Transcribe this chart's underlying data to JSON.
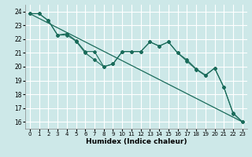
{
  "xlabel": "Humidex (Indice chaleur)",
  "background_color": "#cde8e8",
  "grid_color": "#ffffff",
  "line_color": "#1a6b5a",
  "xlim": [
    -0.5,
    23.5
  ],
  "ylim": [
    15.5,
    24.5
  ],
  "yticks": [
    16,
    17,
    18,
    19,
    20,
    21,
    22,
    23,
    24
  ],
  "xticks": [
    0,
    1,
    2,
    3,
    4,
    5,
    6,
    7,
    8,
    9,
    10,
    11,
    12,
    13,
    14,
    15,
    16,
    17,
    18,
    19,
    20,
    21,
    22,
    23
  ],
  "line1_x": [
    0,
    1,
    2,
    3,
    4,
    5,
    6,
    7,
    8,
    9,
    10,
    11,
    12,
    13,
    14,
    15,
    16,
    17,
    18,
    19,
    20,
    21,
    22,
    23
  ],
  "line1_y": [
    23.85,
    23.85,
    23.35,
    22.3,
    22.4,
    21.9,
    21.1,
    21.1,
    20.0,
    20.2,
    21.1,
    21.1,
    21.1,
    21.8,
    21.5,
    21.8,
    21.0,
    20.5,
    19.85,
    19.4,
    19.9,
    18.5,
    16.65,
    16.0
  ],
  "line2_x": [
    0,
    1,
    2,
    3,
    4,
    5,
    6,
    7,
    8,
    9,
    10,
    11,
    12,
    13,
    14,
    15,
    16,
    17,
    18,
    19,
    20,
    21,
    22,
    23
  ],
  "line2_y": [
    23.85,
    23.85,
    23.35,
    22.3,
    22.3,
    21.85,
    21.0,
    20.5,
    20.0,
    20.2,
    21.1,
    21.1,
    21.1,
    21.8,
    21.5,
    21.8,
    21.0,
    20.4,
    19.8,
    19.35,
    19.9,
    18.5,
    16.6,
    16.0
  ],
  "line3_x": [
    0,
    23
  ],
  "line3_y": [
    23.85,
    16.0
  ]
}
